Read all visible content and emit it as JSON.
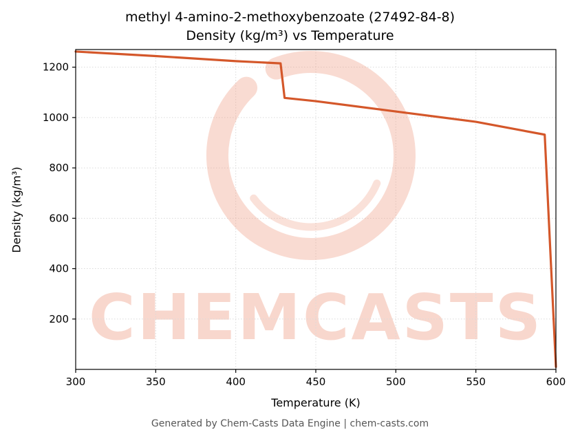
{
  "title": {
    "line1": "methyl 4-amino-2-methoxybenzoate (27492-84-8)",
    "line2": "Density (kg/m³) vs Temperature"
  },
  "axes": {
    "x_label": "Temperature (K)",
    "y_label": "Density (kg/m³)"
  },
  "footer": {
    "text": "Generated by Chem-Casts Data Engine | chem-casts.com"
  },
  "watermark": {
    "text": "CHEMCASTS",
    "color": "#f0a18a"
  },
  "chart_data": {
    "type": "line",
    "title": "methyl 4-amino-2-methoxybenzoate (27492-84-8) — Density (kg/m³) vs Temperature",
    "xlabel": "Temperature (K)",
    "ylabel": "Density (kg/m³)",
    "xlim": [
      300,
      600
    ],
    "ylim": [
      0,
      1270
    ],
    "xticks": [
      300,
      350,
      400,
      450,
      500,
      550,
      600
    ],
    "yticks": [
      200,
      400,
      600,
      800,
      1000,
      1200
    ],
    "grid": true,
    "grid_color": "#d9d9d9",
    "frame_color": "#000000",
    "line_color": "#d4572a",
    "line_width": 3.2,
    "legend": false,
    "series": [
      {
        "name": "Density (kg/m³)",
        "x": [
          300,
          350,
          400,
          428,
          430.5,
          450,
          500,
          550,
          593,
          600
        ],
        "y": [
          1262,
          1244,
          1224,
          1215,
          1078,
          1065,
          1024,
          983,
          932,
          10
        ]
      }
    ]
  }
}
